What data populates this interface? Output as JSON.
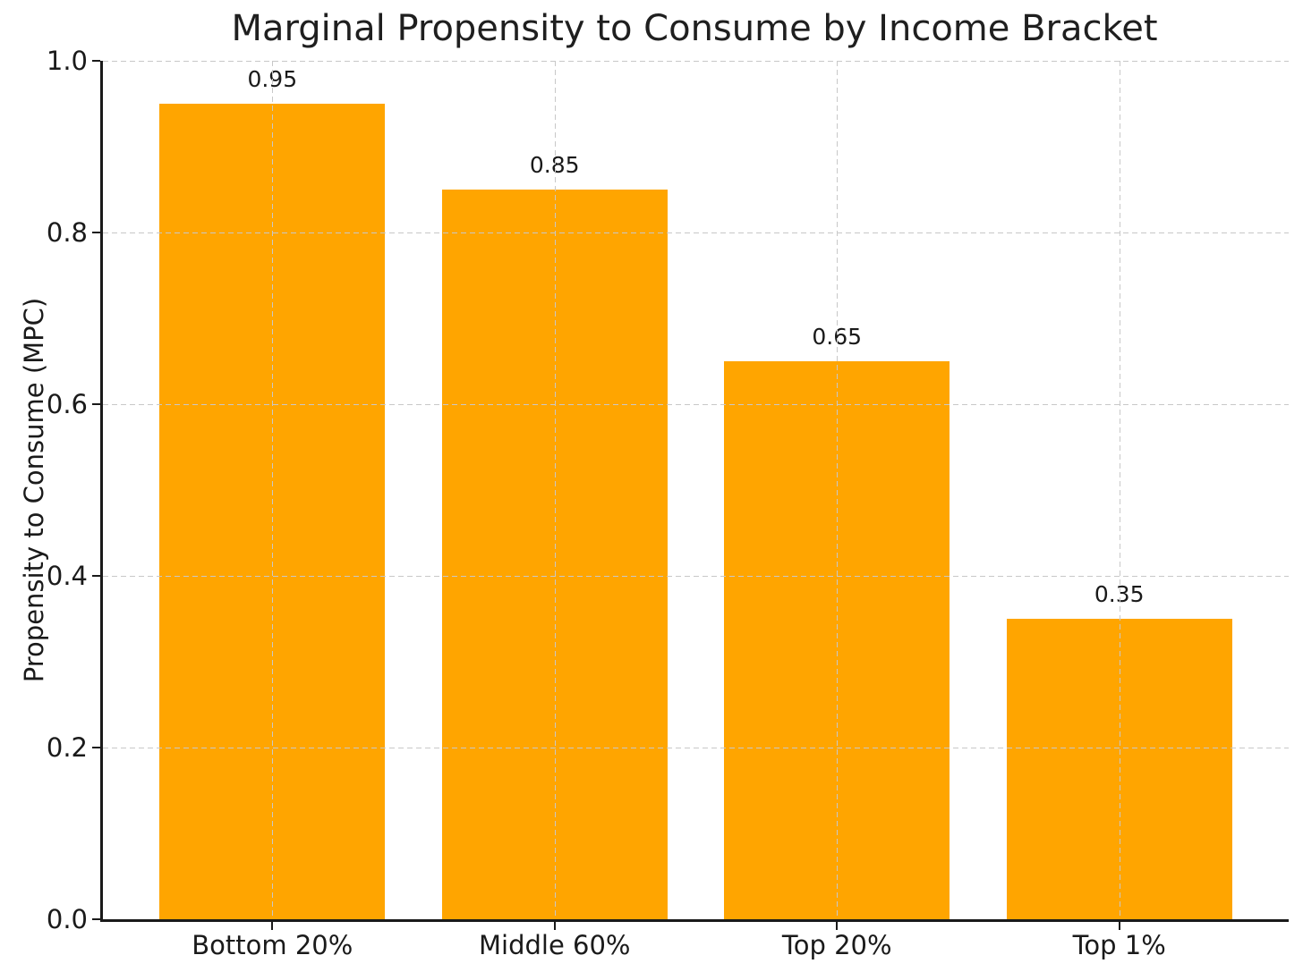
{
  "chart_data": {
    "type": "bar",
    "title": "Marginal Propensity to Consume by Income Bracket",
    "xlabel": "",
    "ylabel": "Propensity to Consume (MPC)",
    "categories": [
      "Bottom 20%",
      "Middle 60%",
      "Top 20%",
      "Top 1%"
    ],
    "values": [
      0.95,
      0.85,
      0.65,
      0.35
    ],
    "value_labels": [
      "0.95",
      "0.85",
      "0.65",
      "0.35"
    ],
    "ylim": [
      0.0,
      1.0
    ],
    "yticks": [
      0.0,
      0.2,
      0.4,
      0.6,
      0.8,
      1.0
    ],
    "ytick_labels": [
      "0.0",
      "0.2",
      "0.4",
      "0.6",
      "0.8",
      "1.0"
    ],
    "bar_color": "#FFA500",
    "grid": true,
    "grid_style": "dashed",
    "grid_axes": "both",
    "grid_above_bars": true,
    "spines": [
      "left",
      "bottom"
    ],
    "legend_position": "none"
  }
}
